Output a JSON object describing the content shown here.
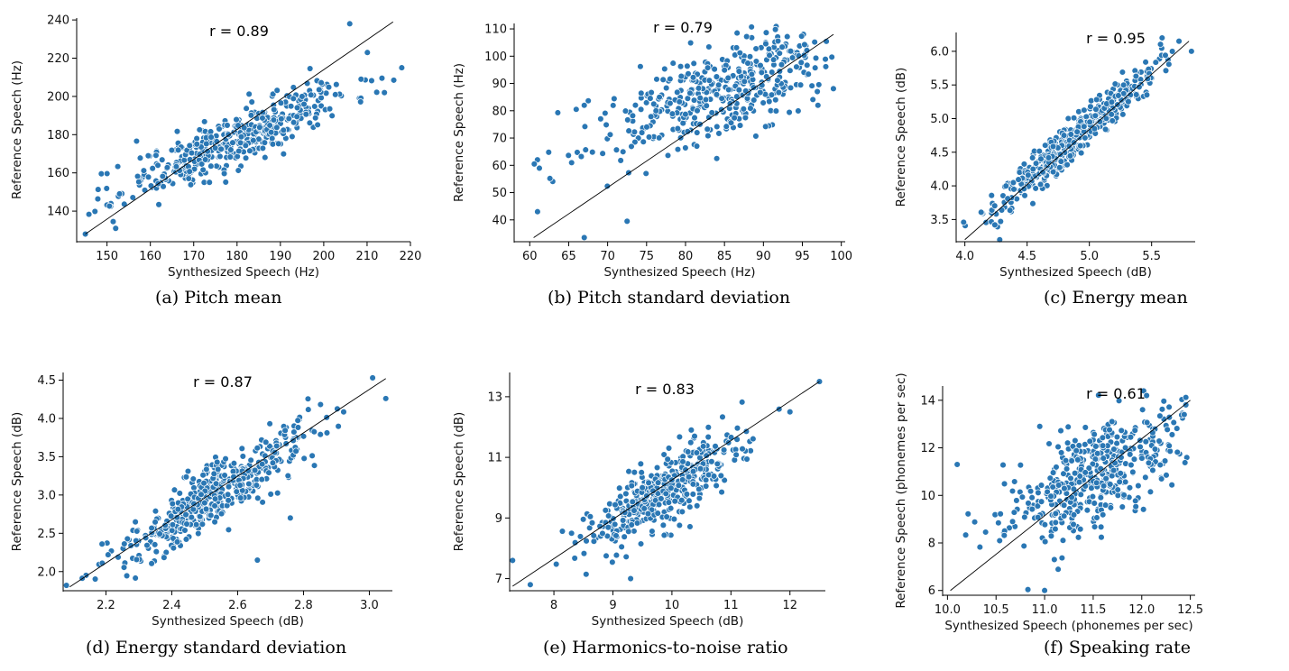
{
  "chart_data": [
    {
      "id": "a",
      "type": "scatter",
      "caption": "(a)  Pitch mean",
      "annotation": "r = 0.89",
      "xlabel": "Synthesized Speech (Hz)",
      "ylabel": "Reference Speech (Hz)",
      "xlim": [
        143,
        220
      ],
      "ylim": [
        124,
        241
      ],
      "xticks": [
        150,
        160,
        170,
        180,
        190,
        200,
        210,
        220
      ],
      "yticks": [
        140,
        160,
        180,
        200,
        220,
        240
      ],
      "x_tick_labels": [
        "150",
        "160",
        "170",
        "180",
        "190",
        "200",
        "210",
        "220"
      ],
      "y_tick_labels": [
        "140",
        "160",
        "180",
        "200",
        "220",
        "240"
      ],
      "fit_line": [
        [
          145,
          128
        ],
        [
          216,
          239
        ]
      ],
      "n_points": 450,
      "point_cloud": {
        "center": [
          180,
          178
        ],
        "x_sd": 13,
        "slope": 1.0,
        "resid_sd": 7.5,
        "x_range": [
          145,
          218
        ]
      },
      "outliers": [
        [
          206,
          238
        ],
        [
          145,
          128
        ],
        [
          218,
          215
        ],
        [
          214,
          202
        ],
        [
          152,
          131
        ]
      ],
      "seed": 11
    },
    {
      "id": "b",
      "type": "scatter",
      "caption": "(b)  Pitch standard deviation",
      "annotation": "r = 0.79",
      "xlabel": "Synthesized Speech (Hz)",
      "ylabel": "Reference Speech (Hz)",
      "xlim": [
        58,
        100.5
      ],
      "ylim": [
        32,
        112
      ],
      "xticks": [
        60,
        65,
        70,
        75,
        80,
        85,
        90,
        95,
        100
      ],
      "yticks": [
        40,
        50,
        60,
        70,
        80,
        90,
        100,
        110
      ],
      "x_tick_labels": [
        "60",
        "65",
        "70",
        "75",
        "80",
        "85",
        "90",
        "95",
        "100"
      ],
      "y_tick_labels": [
        "40",
        "50",
        "60",
        "70",
        "80",
        "90",
        "100",
        "110"
      ],
      "fit_line": [
        [
          60.5,
          33.5
        ],
        [
          99,
          108
        ]
      ],
      "n_points": 430,
      "point_cloud": {
        "center": [
          84,
          86
        ],
        "x_sd": 8.5,
        "slope": 0.95,
        "resid_sd": 8.0,
        "x_range": [
          60,
          99
        ]
      },
      "outliers": [
        [
          67,
          33.5
        ],
        [
          72.5,
          39.5
        ],
        [
          97,
          82
        ],
        [
          61,
          43
        ],
        [
          67,
          82
        ]
      ],
      "seed": 23
    },
    {
      "id": "c",
      "type": "scatter",
      "caption": "(c)  Energy mean",
      "annotation": "r = 0.95",
      "xlabel": "Synthesized Speech (dB)",
      "ylabel": "Reference Speech (dB)",
      "xlim": [
        3.93,
        5.85
      ],
      "ylim": [
        3.17,
        6.28
      ],
      "xticks": [
        4.0,
        4.5,
        5.0,
        5.5
      ],
      "yticks": [
        3.5,
        4.0,
        4.5,
        5.0,
        5.5,
        6.0
      ],
      "x_tick_labels": [
        "4.0",
        "4.5",
        "5.0",
        "5.5"
      ],
      "y_tick_labels": [
        "3.5",
        "4.0",
        "4.5",
        "5.0",
        "5.5",
        "6.0"
      ],
      "fit_line": [
        [
          4.0,
          3.2
        ],
        [
          5.8,
          6.15
        ]
      ],
      "n_points": 480,
      "point_cloud": {
        "center": [
          4.9,
          4.75
        ],
        "x_sd": 0.32,
        "slope": 1.62,
        "resid_sd": 0.15,
        "x_range": [
          4.0,
          5.82
        ]
      },
      "outliers": [
        [
          4.28,
          3.2
        ],
        [
          3.99,
          3.46
        ],
        [
          5.82,
          6.0
        ],
        [
          5.72,
          6.15
        ]
      ],
      "seed": 37
    },
    {
      "id": "d",
      "type": "scatter",
      "caption": "(d)  Energy standard deviation",
      "annotation": "r = 0.87",
      "xlabel": "Synthesized Speech (dB)",
      "ylabel": "Reference Speech (dB)",
      "xlim": [
        2.07,
        3.07
      ],
      "ylim": [
        1.75,
        4.6
      ],
      "xticks": [
        2.2,
        2.4,
        2.6,
        2.8,
        3.0
      ],
      "yticks": [
        2.0,
        2.5,
        3.0,
        3.5,
        4.0,
        4.5
      ],
      "x_tick_labels": [
        "2.2",
        "2.4",
        "2.6",
        "2.8",
        "3.0"
      ],
      "y_tick_labels": [
        "2.0",
        "2.5",
        "3.0",
        "3.5",
        "4.0",
        "4.5"
      ],
      "fit_line": [
        [
          2.09,
          1.8
        ],
        [
          3.05,
          4.52
        ]
      ],
      "n_points": 470,
      "point_cloud": {
        "center": [
          2.53,
          3.0
        ],
        "x_sd": 0.15,
        "slope": 2.8,
        "resid_sd": 0.2,
        "x_range": [
          2.08,
          3.05
        ]
      },
      "outliers": [
        [
          2.66,
          2.15
        ],
        [
          2.76,
          2.7
        ],
        [
          3.01,
          4.53
        ],
        [
          3.05,
          4.26
        ],
        [
          2.08,
          1.82
        ]
      ],
      "seed": 41
    },
    {
      "id": "e",
      "type": "scatter",
      "caption": "(e)  Harmonics-to-noise ratio",
      "annotation": "r = 0.83",
      "xlabel": "Synthesized Speech (dB)",
      "ylabel": "Reference Speech (dB)",
      "xlim": [
        7.25,
        12.6
      ],
      "ylim": [
        6.6,
        13.8
      ],
      "xticks": [
        8,
        9,
        10,
        11,
        12
      ],
      "yticks": [
        7,
        9,
        11,
        13
      ],
      "x_tick_labels": [
        "8",
        "9",
        "10",
        "11",
        "12"
      ],
      "y_tick_labels": [
        "7",
        "9",
        "11",
        "13"
      ],
      "fit_line": [
        [
          7.3,
          6.75
        ],
        [
          12.5,
          13.5
        ]
      ],
      "n_points": 450,
      "point_cloud": {
        "center": [
          9.9,
          9.9
        ],
        "x_sd": 0.7,
        "slope": 1.15,
        "resid_sd": 0.55,
        "x_range": [
          7.3,
          12.5
        ]
      },
      "outliers": [
        [
          12.5,
          13.5
        ],
        [
          12.0,
          12.5
        ],
        [
          9.3,
          7.0
        ],
        [
          7.3,
          7.6
        ],
        [
          7.6,
          6.8
        ]
      ],
      "seed": 53
    },
    {
      "id": "f",
      "type": "scatter",
      "caption": "(f)  Speaking rate",
      "annotation": "r = 0.61",
      "xlabel": "Synthesized Speech (phonemes per sec)",
      "ylabel": "Reference Speech (phonemes per sec)",
      "xlim": [
        9.95,
        12.55
      ],
      "ylim": [
        5.8,
        14.6
      ],
      "xticks": [
        10.0,
        10.5,
        11.0,
        11.5,
        12.0,
        12.5
      ],
      "yticks": [
        6,
        8,
        10,
        12,
        14
      ],
      "x_tick_labels": [
        "10.0",
        "10.5",
        "11.0",
        "11.5",
        "12.0",
        "12.5"
      ],
      "y_tick_labels": [
        "6",
        "8",
        "10",
        "12",
        "14"
      ],
      "fit_line": [
        [
          10.03,
          6.0
        ],
        [
          12.5,
          14.0
        ]
      ],
      "n_points": 440,
      "point_cloud": {
        "center": [
          11.5,
          10.7
        ],
        "x_sd": 0.45,
        "slope": 1.9,
        "resid_sd": 1.0,
        "x_range": [
          10.05,
          12.48
        ]
      },
      "outliers": [
        [
          11.0,
          6.0
        ],
        [
          10.95,
          12.9
        ],
        [
          10.1,
          11.3
        ],
        [
          12.05,
          14.2
        ],
        [
          11.1,
          7.3
        ]
      ],
      "seed": 67
    }
  ]
}
